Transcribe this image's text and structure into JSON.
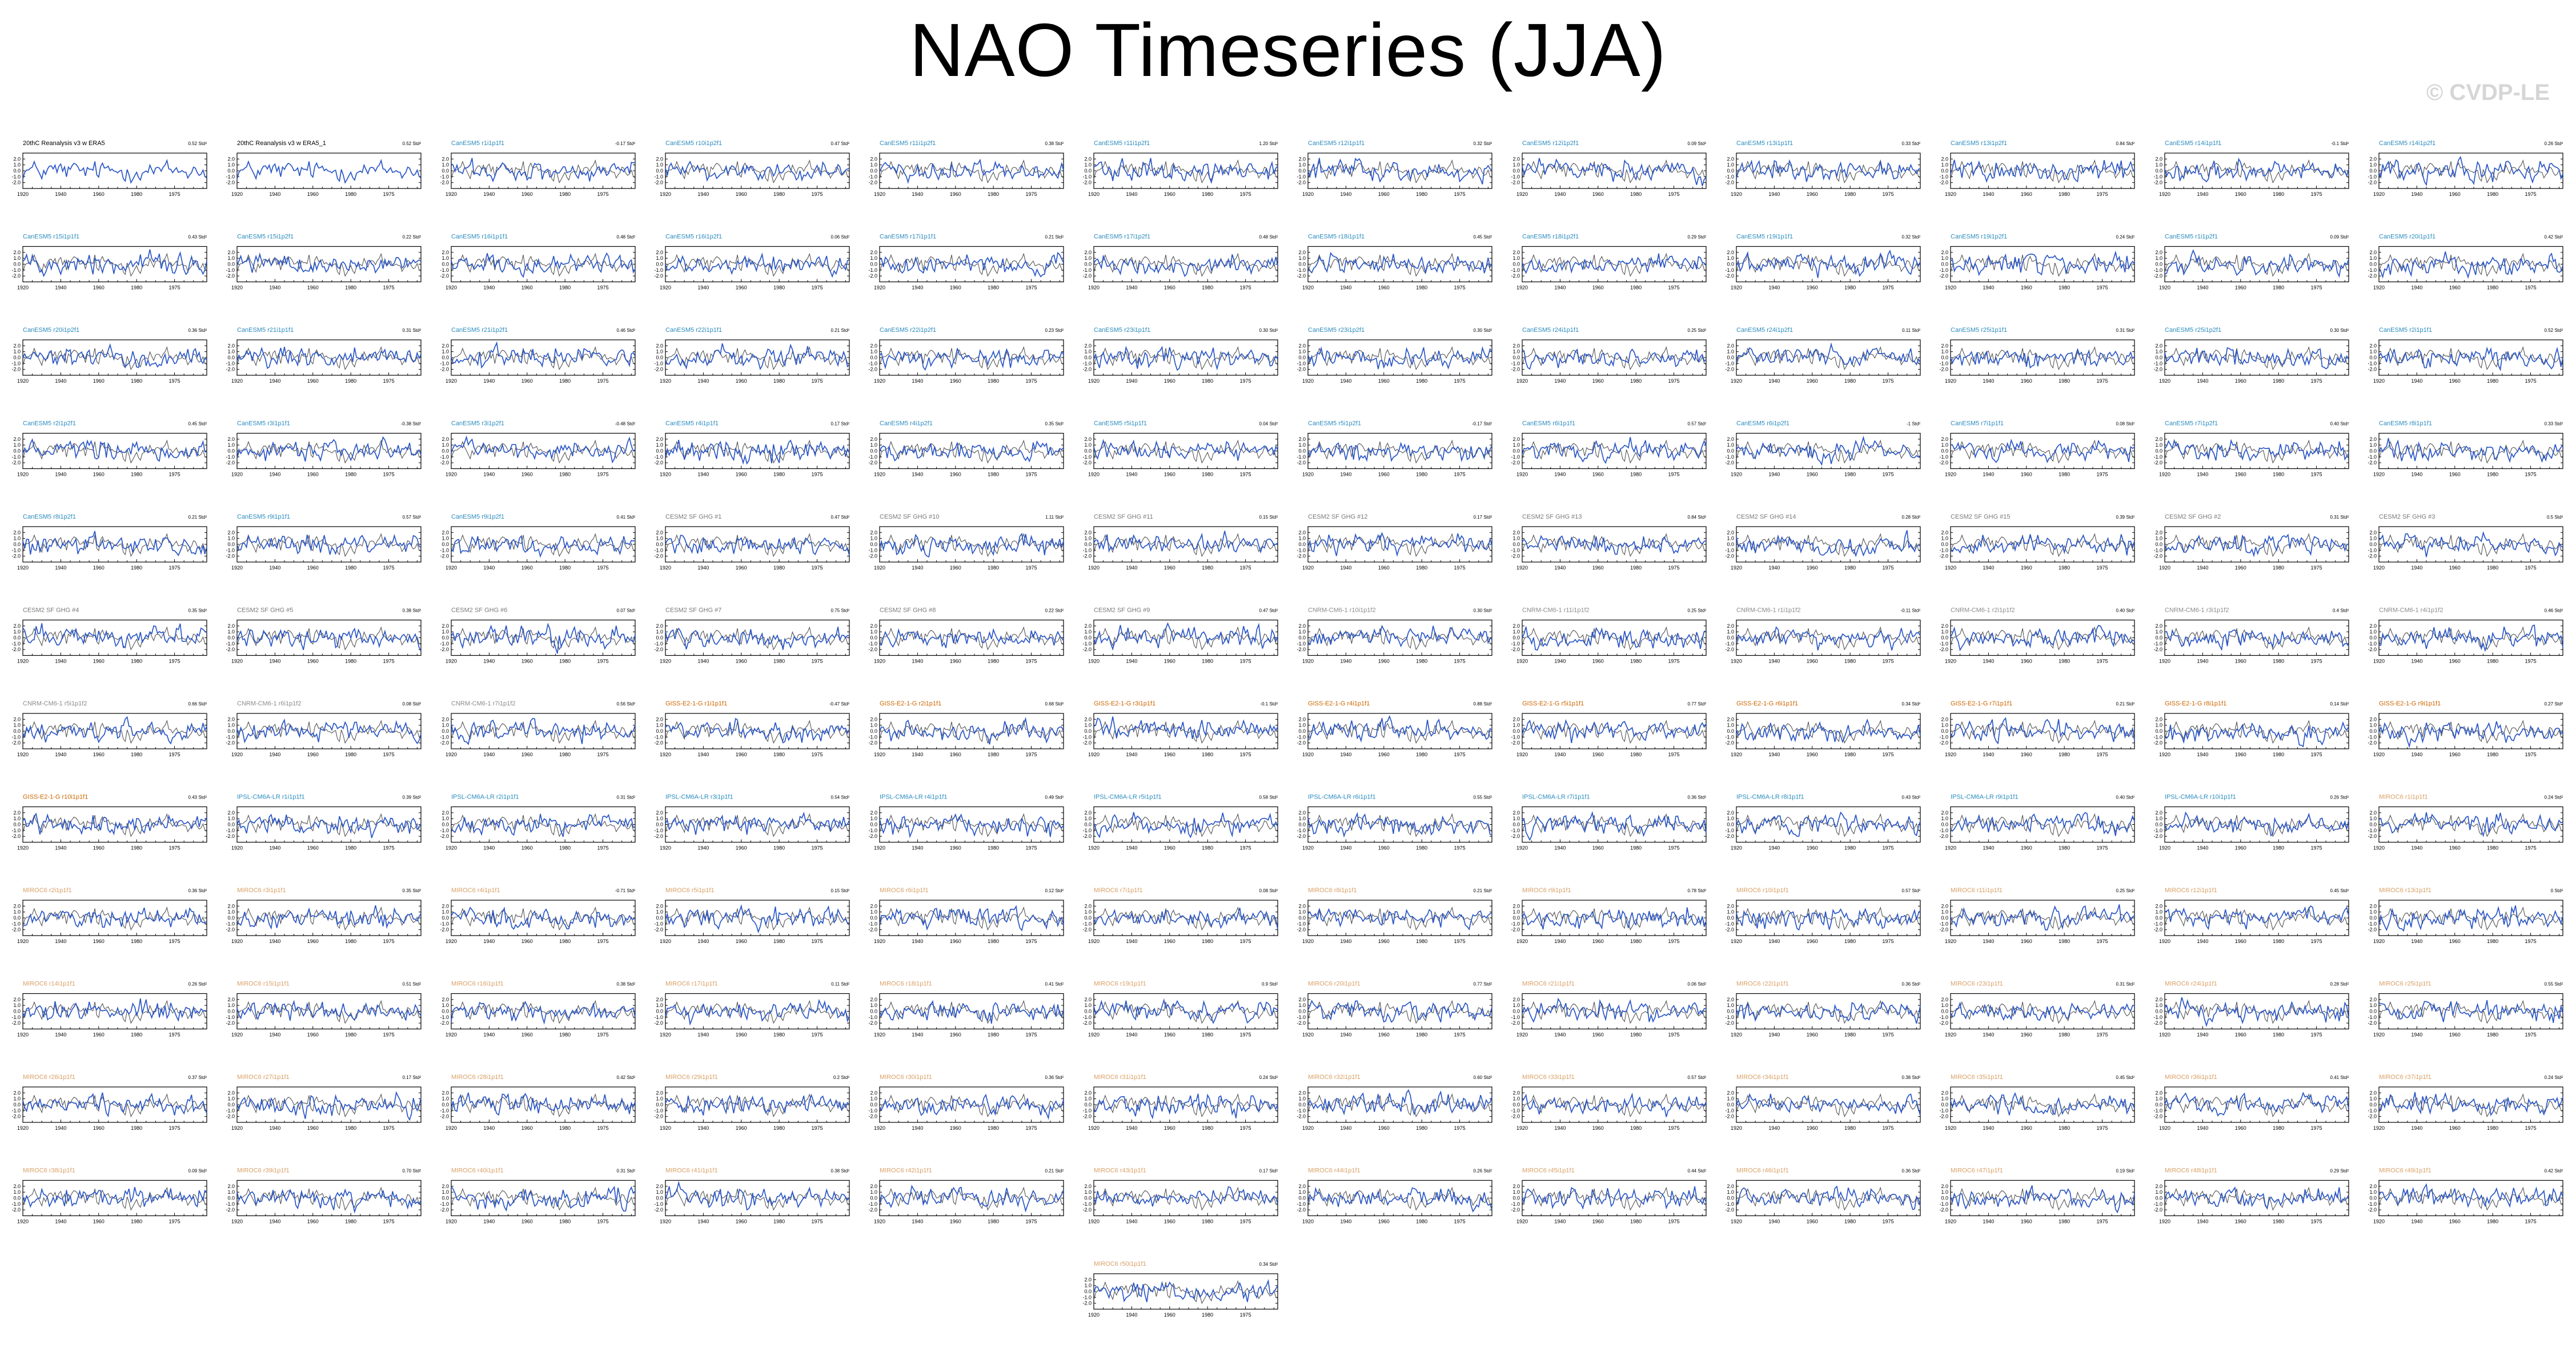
{
  "title": "NAO Timeseries (JJA)",
  "watermark": "© CVDP-LE",
  "colors": {
    "model_line": "#2a56c6",
    "obs_line": "#555555",
    "axes": "#000000",
    "label_obs": "#000000",
    "label_cesm1": "#2b8cbe",
    "label_cesm2": "#7a7a7a",
    "label_cnrm": "#8c8c8c",
    "label_giss": "#cc6600",
    "label_ipsl": "#2b8cbe",
    "label_miroc": "#d9a066"
  },
  "chart_data": {
    "type": "line",
    "xlim": [
      1920,
      2017
    ],
    "ylim": [
      -3,
      3
    ],
    "x_ticks": [
      "1920",
      "1940",
      "1960",
      "1980",
      "1975"
    ],
    "y_ticks": [
      "2.0",
      "1.0",
      "0.0",
      "-1.0",
      "-2.0"
    ],
    "panels": [
      {
        "label": "20thC Reanalysis v3 w ERA5",
        "trend": "0.52 Std²",
        "family": "obs"
      },
      {
        "label": "20thC Reanalysis v3 w ERA5_1",
        "trend": "0.52 Std²",
        "family": "obs"
      },
      {
        "label": "CanESM5 r1i1p1f1",
        "trend": "-0.17 Std²",
        "family": "cesm1"
      },
      {
        "label": "CanESM5 r10i1p2f1",
        "trend": "0.47 Std²",
        "family": "cesm1"
      },
      {
        "label": "CanESM5 r11i1p2f1",
        "trend": "0.38 Std²",
        "family": "cesm1"
      },
      {
        "label": "CanESM5 r11i1p2f1",
        "trend": "1.20 Std²",
        "family": "cesm1"
      },
      {
        "label": "CanESM5 r12i1p1f1",
        "trend": "0.32 Std²",
        "family": "cesm1"
      },
      {
        "label": "CanESM5 r12i1p2f1",
        "trend": "0.09 Std²",
        "family": "cesm1"
      },
      {
        "label": "CanESM5 r13i1p1f1",
        "trend": "0.33 Std²",
        "family": "cesm1"
      },
      {
        "label": "CanESM5 r13i1p2f1",
        "trend": "0.84 Std²",
        "family": "cesm1"
      },
      {
        "label": "CanESM5 r14i1p1f1",
        "trend": "-0.1 Std²",
        "family": "cesm1"
      },
      {
        "label": "CanESM5 r14i1p2f1",
        "trend": "0.26 Std²",
        "family": "cesm1"
      },
      {
        "label": "CanESM5 r15i1p1f1",
        "trend": "0.43 Std²",
        "family": "cesm1"
      },
      {
        "label": "CanESM5 r15i1p2f1",
        "trend": "0.22 Std²",
        "family": "cesm1"
      },
      {
        "label": "CanESM5 r16i1p1f1",
        "trend": "0.48 Std²",
        "family": "cesm1"
      },
      {
        "label": "CanESM5 r16i1p2f1",
        "trend": "0.06 Std²",
        "family": "cesm1"
      },
      {
        "label": "CanESM5 r17i1p1f1",
        "trend": "0.21 Std²",
        "family": "cesm1"
      },
      {
        "label": "CanESM5 r17i1p2f1",
        "trend": "0.48 Std²",
        "family": "cesm1"
      },
      {
        "label": "CanESM5 r18i1p1f1",
        "trend": "0.45 Std²",
        "family": "cesm1"
      },
      {
        "label": "CanESM5 r18i1p2f1",
        "trend": "0.29 Std²",
        "family": "cesm1"
      },
      {
        "label": "CanESM5 r19i1p1f1",
        "trend": "0.32 Std²",
        "family": "cesm1"
      },
      {
        "label": "CanESM5 r19i1p2f1",
        "trend": "0.24 Std²",
        "family": "cesm1"
      },
      {
        "label": "CanESM5 r1i1p2f1",
        "trend": "0.09 Std²",
        "family": "cesm1"
      },
      {
        "label": "CanESM5 r20i1p1f1",
        "trend": "0.42 Std²",
        "family": "cesm1"
      },
      {
        "label": "CanESM5 r20i1p2f1",
        "trend": "0.36 Std²",
        "family": "cesm1"
      },
      {
        "label": "CanESM5 r21i1p1f1",
        "trend": "0.31 Std²",
        "family": "cesm1"
      },
      {
        "label": "CanESM5 r21i1p2f1",
        "trend": "0.46 Std²",
        "family": "cesm1"
      },
      {
        "label": "CanESM5 r22i1p1f1",
        "trend": "0.21 Std²",
        "family": "cesm1"
      },
      {
        "label": "CanESM5 r22i1p2f1",
        "trend": "0.23 Std²",
        "family": "cesm1"
      },
      {
        "label": "CanESM5 r23i1p1f1",
        "trend": "0.30 Std²",
        "family": "cesm1"
      },
      {
        "label": "CanESM5 r23i1p2f1",
        "trend": "0.30 Std²",
        "family": "cesm1"
      },
      {
        "label": "CanESM5 r24i1p1f1",
        "trend": "0.25 Std²",
        "family": "cesm1"
      },
      {
        "label": "CanESM5 r24i1p2f1",
        "trend": "0.11 Std²",
        "family": "cesm1"
      },
      {
        "label": "CanESM5 r25i1p1f1",
        "trend": "0.31 Std²",
        "family": "cesm1"
      },
      {
        "label": "CanESM5 r25i1p2f1",
        "trend": "0.30 Std²",
        "family": "cesm1"
      },
      {
        "label": "CanESM5 r2i1p1f1",
        "trend": "0.52 Std²",
        "family": "cesm1"
      },
      {
        "label": "CanESM5 r2i1p2f1",
        "trend": "0.45 Std²",
        "family": "cesm1"
      },
      {
        "label": "CanESM5 r3i1p1f1",
        "trend": "-0.38 Std²",
        "family": "cesm1"
      },
      {
        "label": "CanESM5 r3i1p2f1",
        "trend": "-0.48 Std²",
        "family": "cesm1"
      },
      {
        "label": "CanESM5 r4i1p1f1",
        "trend": "0.17 Std²",
        "family": "cesm1"
      },
      {
        "label": "CanESM5 r4i1p2f1",
        "trend": "0.35 Std²",
        "family": "cesm1"
      },
      {
        "label": "CanESM5 r5i1p1f1",
        "trend": "0.04 Std²",
        "family": "cesm1"
      },
      {
        "label": "CanESM5 r5i1p2f1",
        "trend": "-0.17 Std²",
        "family": "cesm1"
      },
      {
        "label": "CanESM5 r6i1p1f1",
        "trend": "0.57 Std²",
        "family": "cesm1"
      },
      {
        "label": "CanESM5 r6i1p2f1",
        "trend": "-1 Std²",
        "family": "cesm1"
      },
      {
        "label": "CanESM5 r7i1p1f1",
        "trend": "0.08 Std²",
        "family": "cesm1"
      },
      {
        "label": "CanESM5 r7i1p2f1",
        "trend": "0.40 Std²",
        "family": "cesm1"
      },
      {
        "label": "CanESM5 r8i1p1f1",
        "trend": "0.33 Std²",
        "family": "cesm1"
      },
      {
        "label": "CanESM5 r8i1p2f1",
        "trend": "0.21 Std²",
        "family": "cesm1"
      },
      {
        "label": "CanESM5 r9i1p1f1",
        "trend": "0.57 Std²",
        "family": "cesm1"
      },
      {
        "label": "CanESM5 r9i1p2f1",
        "trend": "0.41 Std²",
        "family": "cesm1"
      },
      {
        "label": "CESM2 SF GHG #1",
        "trend": "0.47 Std²",
        "family": "cesm2"
      },
      {
        "label": "CESM2 SF GHG #10",
        "trend": "1.11 Std²",
        "family": "cesm2"
      },
      {
        "label": "CESM2 SF GHG #11",
        "trend": "0.15 Std²",
        "family": "cesm2"
      },
      {
        "label": "CESM2 SF GHG #12",
        "trend": "0.17 Std²",
        "family": "cesm2"
      },
      {
        "label": "CESM2 SF GHG #13",
        "trend": "0.84 Std²",
        "family": "cesm2"
      },
      {
        "label": "CESM2 SF GHG #14",
        "trend": "0.28 Std²",
        "family": "cesm2"
      },
      {
        "label": "CESM2 SF GHG #15",
        "trend": "0.39 Std²",
        "family": "cesm2"
      },
      {
        "label": "CESM2 SF GHG #2",
        "trend": "0.31 Std²",
        "family": "cesm2"
      },
      {
        "label": "CESM2 SF GHG #3",
        "trend": "0.5 Std²",
        "family": "cesm2"
      },
      {
        "label": "CESM2 SF GHG #4",
        "trend": "0.35 Std²",
        "family": "cesm2"
      },
      {
        "label": "CESM2 SF GHG #5",
        "trend": "0.38 Std²",
        "family": "cesm2"
      },
      {
        "label": "CESM2 SF GHG #6",
        "trend": "0.07 Std²",
        "family": "cesm2"
      },
      {
        "label": "CESM2 SF GHG #7",
        "trend": "0.75 Std²",
        "family": "cesm2"
      },
      {
        "label": "CESM2 SF GHG #8",
        "trend": "0.22 Std²",
        "family": "cesm2"
      },
      {
        "label": "CESM2 SF GHG #9",
        "trend": "0.47 Std²",
        "family": "cesm2"
      },
      {
        "label": "CNRM-CM6-1 r10i1p1f2",
        "trend": "0.30 Std²",
        "family": "cnrm"
      },
      {
        "label": "CNRM-CM6-1 r11i1p1f2",
        "trend": "0.25 Std²",
        "family": "cnrm"
      },
      {
        "label": "CNRM-CM6-1 r1i1p1f2",
        "trend": "-0.11 Std²",
        "family": "cnrm"
      },
      {
        "label": "CNRM-CM6-1 r2i1p1f2",
        "trend": "0.40 Std²",
        "family": "cnrm"
      },
      {
        "label": "CNRM-CM6-1 r3i1p1f2",
        "trend": "0.4 Std²",
        "family": "cnrm"
      },
      {
        "label": "CNRM-CM6-1 r4i1p1f2",
        "trend": "0.46 Std²",
        "family": "cnrm"
      },
      {
        "label": "CNRM-CM6-1 r5i1p1f2",
        "trend": "0.66 Std²",
        "family": "cnrm"
      },
      {
        "label": "CNRM-CM6-1 r6i1p1f2",
        "trend": "0.08 Std²",
        "family": "cnrm"
      },
      {
        "label": "CNRM-CM6-1 r7i1p1f2",
        "trend": "0.56 Std²",
        "family": "cnrm"
      },
      {
        "label": "GISS-E2-1-G r1i1p1f1",
        "trend": "-0.47 Std²",
        "family": "giss"
      },
      {
        "label": "GISS-E2-1-G r2i1p1f1",
        "trend": "0.68 Std²",
        "family": "giss"
      },
      {
        "label": "GISS-E2-1-G r3i1p1f1",
        "trend": "-0.1 Std²",
        "family": "giss"
      },
      {
        "label": "GISS-E2-1-G r4i1p1f1",
        "trend": "0.88 Std²",
        "family": "giss"
      },
      {
        "label": "GISS-E2-1-G r5i1p1f1",
        "trend": "0.77 Std²",
        "family": "giss"
      },
      {
        "label": "GISS-E2-1-G r6i1p1f1",
        "trend": "0.34 Std²",
        "family": "giss"
      },
      {
        "label": "GISS-E2-1-G r7i1p1f1",
        "trend": "0.21 Std²",
        "family": "giss"
      },
      {
        "label": "GISS-E2-1-G r8i1p1f1",
        "trend": "0.14 Std²",
        "family": "giss"
      },
      {
        "label": "GISS-E2-1-G r9i1p1f1",
        "trend": "0.27 Std²",
        "family": "giss"
      },
      {
        "label": "GISS-E2-1-G r10i1p1f1",
        "trend": "0.43 Std²",
        "family": "giss"
      },
      {
        "label": "IPSL-CM6A-LR r1i1p1f1",
        "trend": "0.39 Std²",
        "family": "ipsl"
      },
      {
        "label": "IPSL-CM6A-LR r2i1p1f1",
        "trend": "0.31 Std²",
        "family": "ipsl"
      },
      {
        "label": "IPSL-CM6A-LR r3i1p1f1",
        "trend": "0.54 Std²",
        "family": "ipsl"
      },
      {
        "label": "IPSL-CM6A-LR r4i1p1f1",
        "trend": "0.49 Std²",
        "family": "ipsl"
      },
      {
        "label": "IPSL-CM6A-LR r5i1p1f1",
        "trend": "0.58 Std²",
        "family": "ipsl"
      },
      {
        "label": "IPSL-CM6A-LR r6i1p1f1",
        "trend": "0.55 Std²",
        "family": "ipsl"
      },
      {
        "label": "IPSL-CM6A-LR r7i1p1f1",
        "trend": "0.36 Std²",
        "family": "ipsl"
      },
      {
        "label": "IPSL-CM6A-LR r8i1p1f1",
        "trend": "0.43 Std²",
        "family": "ipsl"
      },
      {
        "label": "IPSL-CM6A-LR r9i1p1f1",
        "trend": "0.40 Std²",
        "family": "ipsl"
      },
      {
        "label": "IPSL-CM6A-LR r10i1p1f1",
        "trend": "0.26 Std²",
        "family": "ipsl"
      },
      {
        "label": "MIROC6 r1i1p1f1",
        "trend": "0.24 Std²",
        "family": "miroc"
      },
      {
        "label": "MIROC6 r2i1p1f1",
        "trend": "0.36 Std²",
        "family": "miroc"
      },
      {
        "label": "MIROC6 r3i1p1f1",
        "trend": "0.35 Std²",
        "family": "miroc"
      },
      {
        "label": "MIROC6 r4i1p1f1",
        "trend": "-0.71 Std²",
        "family": "miroc"
      },
      {
        "label": "MIROC6 r5i1p1f1",
        "trend": "0.15 Std²",
        "family": "miroc"
      },
      {
        "label": "MIROC6 r6i1p1f1",
        "trend": "0.12 Std²",
        "family": "miroc"
      },
      {
        "label": "MIROC6 r7i1p1f1",
        "trend": "0.08 Std²",
        "family": "miroc"
      },
      {
        "label": "MIROC6 r8i1p1f1",
        "trend": "0.21 Std²",
        "family": "miroc"
      },
      {
        "label": "MIROC6 r9i1p1f1",
        "trend": "0.78 Std²",
        "family": "miroc"
      },
      {
        "label": "MIROC6 r10i1p1f1",
        "trend": "0.57 Std²",
        "family": "miroc"
      },
      {
        "label": "MIROC6 r11i1p1f1",
        "trend": "0.25 Std²",
        "family": "miroc"
      },
      {
        "label": "MIROC6 r12i1p1f1",
        "trend": "0.45 Std²",
        "family": "miroc"
      },
      {
        "label": "MIROC6 r13i1p1f1",
        "trend": "0 Std²",
        "family": "miroc"
      },
      {
        "label": "MIROC6 r14i1p1f1",
        "trend": "0.26 Std²",
        "family": "miroc"
      },
      {
        "label": "MIROC6 r15i1p1f1",
        "trend": "0.51 Std²",
        "family": "miroc"
      },
      {
        "label": "MIROC6 r16i1p1f1",
        "trend": "0.38 Std²",
        "family": "miroc"
      },
      {
        "label": "MIROC6 r17i1p1f1",
        "trend": "0.11 Std²",
        "family": "miroc"
      },
      {
        "label": "MIROC6 r18i1p1f1",
        "trend": "0.41 Std²",
        "family": "miroc"
      },
      {
        "label": "MIROC6 r19i1p1f1",
        "trend": "0.9 Std²",
        "family": "miroc"
      },
      {
        "label": "MIROC6 r20i1p1f1",
        "trend": "0.77 Std²",
        "family": "miroc"
      },
      {
        "label": "MIROC6 r21i1p1f1",
        "trend": "0.06 Std²",
        "family": "miroc"
      },
      {
        "label": "MIROC6 r22i1p1f1",
        "trend": "0.36 Std²",
        "family": "miroc"
      },
      {
        "label": "MIROC6 r23i1p1f1",
        "trend": "0.31 Std²",
        "family": "miroc"
      },
      {
        "label": "MIROC6 r24i1p1f1",
        "trend": "0.28 Std²",
        "family": "miroc"
      },
      {
        "label": "MIROC6 r25i1p1f1",
        "trend": "0.55 Std²",
        "family": "miroc"
      },
      {
        "label": "MIROC6 r26i1p1f1",
        "trend": "0.37 Std²",
        "family": "miroc"
      },
      {
        "label": "MIROC6 r27i1p1f1",
        "trend": "0.17 Std²",
        "family": "miroc"
      },
      {
        "label": "MIROC6 r28i1p1f1",
        "trend": "0.42 Std²",
        "family": "miroc"
      },
      {
        "label": "MIROC6 r29i1p1f1",
        "trend": "0.2 Std²",
        "family": "miroc"
      },
      {
        "label": "MIROC6 r30i1p1f1",
        "trend": "0.36 Std²",
        "family": "miroc"
      },
      {
        "label": "MIROC6 r31i1p1f1",
        "trend": "0.24 Std²",
        "family": "miroc"
      },
      {
        "label": "MIROC6 r32i1p1f1",
        "trend": "0.60 Std²",
        "family": "miroc"
      },
      {
        "label": "MIROC6 r33i1p1f1",
        "trend": "0.57 Std²",
        "family": "miroc"
      },
      {
        "label": "MIROC6 r34i1p1f1",
        "trend": "0.38 Std²",
        "family": "miroc"
      },
      {
        "label": "MIROC6 r35i1p1f1",
        "trend": "0.45 Std²",
        "family": "miroc"
      },
      {
        "label": "MIROC6 r36i1p1f1",
        "trend": "0.41 Std²",
        "family": "miroc"
      },
      {
        "label": "MIROC6 r37i1p1f1",
        "trend": "0.24 Std²",
        "family": "miroc"
      },
      {
        "label": "MIROC6 r38i1p1f1",
        "trend": "0.09 Std²",
        "family": "miroc"
      },
      {
        "label": "MIROC6 r39i1p1f1",
        "trend": "0.70 Std²",
        "family": "miroc"
      },
      {
        "label": "MIROC6 r40i1p1f1",
        "trend": "0.31 Std²",
        "family": "miroc"
      },
      {
        "label": "MIROC6 r41i1p1f1",
        "trend": "0.38 Std²",
        "family": "miroc"
      },
      {
        "label": "MIROC6 r42i1p1f1",
        "trend": "0.21 Std²",
        "family": "miroc"
      },
      {
        "label": "MIROC6 r43i1p1f1",
        "trend": "0.17 Std²",
        "family": "miroc"
      },
      {
        "label": "MIROC6 r44i1p1f1",
        "trend": "0.26 Std²",
        "family": "miroc"
      },
      {
        "label": "MIROC6 r45i1p1f1",
        "trend": "0.44 Std²",
        "family": "miroc"
      },
      {
        "label": "MIROC6 r46i1p1f1",
        "trend": "0.36 Std²",
        "family": "miroc"
      },
      {
        "label": "MIROC6 r47i1p1f1",
        "trend": "0.19 Std²",
        "family": "miroc"
      },
      {
        "label": "MIROC6 r48i1p1f1",
        "trend": "0.29 Std²",
        "family": "miroc"
      },
      {
        "label": "MIROC6 r49i1p1f1",
        "trend": "0.42 Std²",
        "family": "miroc"
      },
      {
        "label": "MIROC6 r50i1p1f1",
        "trend": "0.34 Std²",
        "family": "miroc"
      }
    ]
  }
}
